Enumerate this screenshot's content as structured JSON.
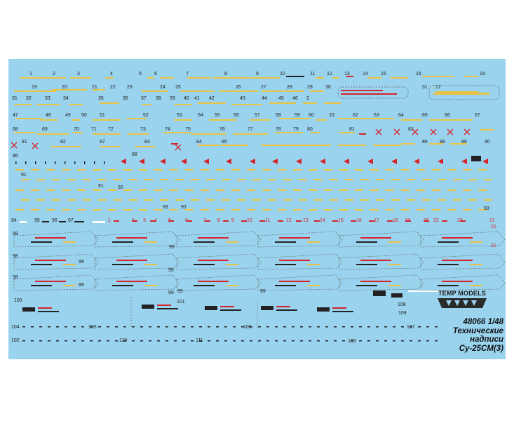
{
  "brand": "TEMP MODELS",
  "caption": {
    "code": "48066 1/48",
    "line1": "Технические",
    "line2": "надписи",
    "line3": "Су-25СМ(3)"
  },
  "colors": {
    "sheet": "#9ad3ee",
    "yellow": "#e9c341",
    "red": "#d6232a",
    "dark": "#222222",
    "white": "#ffffff"
  },
  "numbers": {
    "row_1": [
      "1",
      "2",
      "3",
      "4",
      "5",
      "6",
      "7",
      "8",
      "9",
      "10",
      "11",
      "12",
      "13",
      "14",
      "15",
      "16",
      "18"
    ],
    "row_2": [
      "19",
      "20",
      "21",
      "22",
      "23",
      "24",
      "25",
      "26",
      "27",
      "28",
      "29",
      "30",
      "17",
      "31"
    ],
    "row_3": [
      "31",
      "32",
      "33",
      "34",
      "35",
      "36",
      "37",
      "38",
      "39",
      "40",
      "41",
      "42",
      "43",
      "44",
      "45",
      "46",
      "2"
    ],
    "row_4": [
      "47",
      "48",
      "49",
      "50",
      "51",
      "52",
      "53",
      "54",
      "55",
      "56",
      "57",
      "58",
      "59",
      "60",
      "61",
      "62",
      "63",
      "64",
      "65",
      "66",
      "67"
    ],
    "row_5": [
      "68",
      "69",
      "70",
      "71",
      "72",
      "73",
      "74",
      "75",
      "76",
      "77",
      "78",
      "79",
      "80",
      "81",
      "82"
    ],
    "row_6": [
      "81",
      "82",
      "83",
      "84",
      "85",
      "86",
      "88",
      "89",
      "90",
      "87"
    ],
    "mid_rows": [
      "86",
      "88",
      "91",
      "91",
      "92",
      "92",
      "93",
      "93"
    ],
    "row_94": [
      "94",
      "95",
      "96",
      "97",
      "1",
      "2",
      "3",
      "4",
      "5",
      "6",
      "7",
      "8",
      "9",
      "10",
      "11",
      "12",
      "13",
      "14",
      "15",
      "16",
      "17",
      "18",
      "19",
      "20",
      "22",
      "23",
      "21"
    ],
    "wings": [
      "98",
      "99",
      "98",
      "99",
      "98",
      "99",
      "99",
      "99",
      "99",
      "99",
      "21"
    ],
    "lower": [
      "100",
      "101",
      "102",
      "103",
      "104",
      "105",
      "106",
      "107",
      "108",
      "109",
      "110",
      "111"
    ]
  }
}
